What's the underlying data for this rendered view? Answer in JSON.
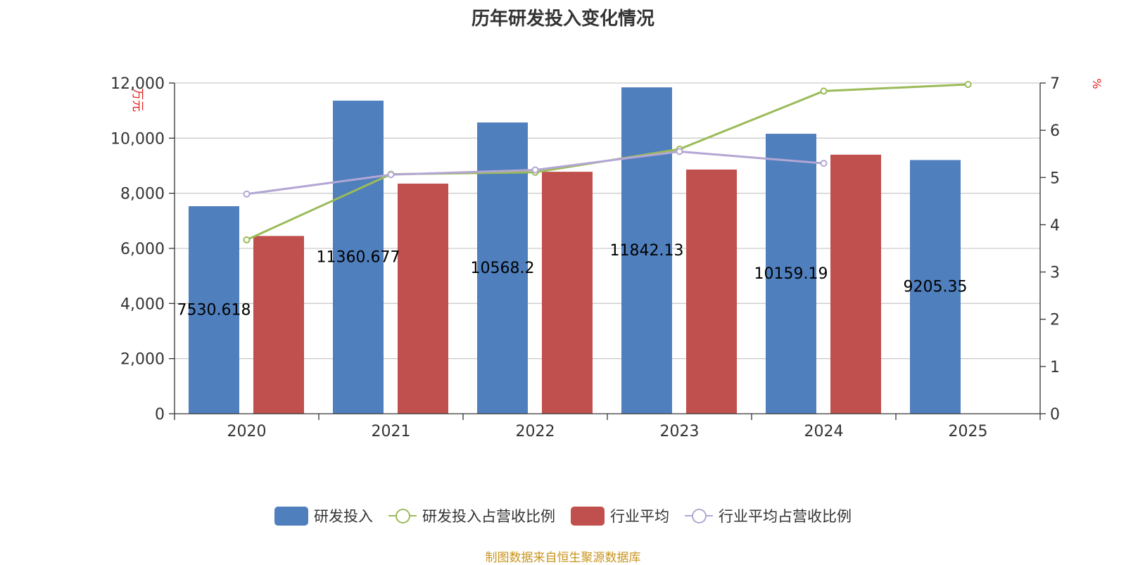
{
  "title": "历年研发投入变化情况",
  "source_note": "制图数据来自恒生聚源数据库",
  "colors": {
    "bar_rd": "#4f7fbd",
    "bar_industry": "#c0504d",
    "line_rd_ratio": "#9bbb59",
    "line_industry_ratio": "#b3a6d4",
    "axis_label_red": "#e02020",
    "source": "#c8951e"
  },
  "chart_data": {
    "type": "bar",
    "categories": [
      "2020",
      "2021",
      "2022",
      "2023",
      "2024",
      "2025"
    ],
    "left_axis": {
      "label": "万元",
      "ylim": [
        0,
        12000
      ],
      "ticks": [
        "0",
        "2,000",
        "4,000",
        "6,000",
        "8,000",
        "10,000",
        "12,000"
      ]
    },
    "right_axis": {
      "label": "%",
      "ylim": [
        0,
        7
      ],
      "ticks": [
        "0",
        "1",
        "2",
        "3",
        "4",
        "5",
        "6",
        "7"
      ]
    },
    "series": [
      {
        "name": "研发投入",
        "type": "bar",
        "axis": "left",
        "values": [
          7530.618,
          11360.677,
          10568.2,
          11842.13,
          10159.19,
          9205.35
        ],
        "labels": [
          "7530.618",
          "11360.677",
          "10568.2",
          "11842.13",
          "10159.19",
          "9205.35"
        ]
      },
      {
        "name": "研发投入占营收比例",
        "type": "line",
        "axis": "right",
        "values": [
          3.68,
          5.07,
          5.11,
          5.6,
          6.83,
          6.97
        ]
      },
      {
        "name": "行业平均",
        "type": "bar",
        "axis": "left",
        "values": [
          6450,
          8350,
          8780,
          8860,
          9400,
          null
        ]
      },
      {
        "name": "行业平均占营收比例",
        "type": "line",
        "axis": "right",
        "values": [
          4.65,
          5.06,
          5.16,
          5.55,
          5.3,
          null
        ]
      }
    ],
    "grid": true,
    "legend_position": "bottom"
  }
}
